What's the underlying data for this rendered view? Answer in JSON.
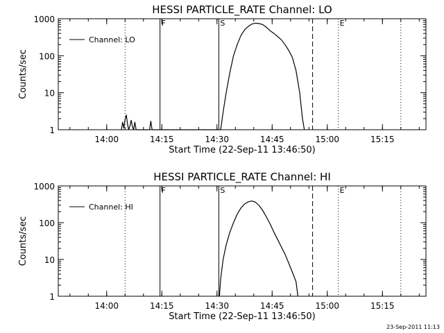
{
  "chart_data": [
    {
      "type": "line",
      "title": "HESSI PARTICLE_RATE Channel: LO",
      "xlabel": "Start Time (22-Sep-11 13:46:50)",
      "ylabel": "Counts/sec",
      "yscale": "log",
      "ylim": [
        1,
        1000
      ],
      "xlim": [
        "13:46:50",
        "15:26:50"
      ],
      "x_ticks": [
        "14:00",
        "14:15",
        "14:30",
        "14:45",
        "15:00",
        "15:15"
      ],
      "y_ticks": [
        "1",
        "10",
        "100",
        "1000"
      ],
      "legend": {
        "placement": "top-left",
        "entries": [
          "Channel: LO"
        ]
      },
      "markers": [
        {
          "time": "14:05",
          "style": "dotted",
          "label": ""
        },
        {
          "time": "14:14:30",
          "style": "solid",
          "label": "F"
        },
        {
          "time": "14:30:30",
          "style": "solid",
          "label": "S"
        },
        {
          "time": "14:56",
          "style": "dashed",
          "label": ""
        },
        {
          "time": "15:03",
          "style": "dotted",
          "label": "E"
        },
        {
          "time": "15:20",
          "style": "dotted",
          "label": ""
        }
      ],
      "series": [
        {
          "name": "Channel: LO",
          "points": [
            [
              "14:04:00",
              1
            ],
            [
              "14:04:20",
              1.6
            ],
            [
              "14:04:40",
              1.1
            ],
            [
              "14:05:00",
              1.9
            ],
            [
              "14:05:20",
              2.5
            ],
            [
              "14:05:40",
              1.4
            ],
            [
              "14:06:00",
              1
            ],
            [
              "14:06:20",
              1.3
            ],
            [
              "14:06:40",
              1.8
            ],
            [
              "14:07:00",
              1.2
            ],
            [
              "14:07:20",
              1
            ],
            [
              "14:07:40",
              1.6
            ],
            [
              "14:08:00",
              1
            ],
            [
              "14:11:40",
              1
            ],
            [
              "14:12:00",
              1.7
            ],
            [
              "14:12:20",
              1
            ],
            [
              "14:31:00",
              1
            ],
            [
              "14:31:40",
              3
            ],
            [
              "14:32:30",
              10
            ],
            [
              "14:33:30",
              35
            ],
            [
              "14:34:30",
              100
            ],
            [
              "14:35:30",
              200
            ],
            [
              "14:36:30",
              350
            ],
            [
              "14:37:30",
              500
            ],
            [
              "14:38:30",
              620
            ],
            [
              "14:39:30",
              720
            ],
            [
              "14:40:30",
              760
            ],
            [
              "14:41:30",
              740
            ],
            [
              "14:42:30",
              690
            ],
            [
              "14:43:30",
              580
            ],
            [
              "14:44:30",
              470
            ],
            [
              "14:45:30",
              400
            ],
            [
              "14:46:30",
              330
            ],
            [
              "14:47:30",
              270
            ],
            [
              "14:48:30",
              200
            ],
            [
              "14:49:30",
              140
            ],
            [
              "14:50:30",
              90
            ],
            [
              "14:51:30",
              40
            ],
            [
              "14:52:30",
              10
            ],
            [
              "14:53:15",
              2
            ],
            [
              "14:53:45",
              1
            ]
          ]
        }
      ]
    },
    {
      "type": "line",
      "title": "HESSI PARTICLE_RATE Channel: HI",
      "xlabel": "Start Time (22-Sep-11 13:46:50)",
      "ylabel": "Counts/sec",
      "yscale": "log",
      "ylim": [
        1,
        1000
      ],
      "xlim": [
        "13:46:50",
        "15:26:50"
      ],
      "x_ticks": [
        "14:00",
        "14:15",
        "14:30",
        "14:45",
        "15:00",
        "15:15"
      ],
      "y_ticks": [
        "1",
        "10",
        "100",
        "1000"
      ],
      "legend": {
        "placement": "top-left",
        "entries": [
          "Channel: HI"
        ]
      },
      "markers": [
        {
          "time": "14:05",
          "style": "dotted",
          "label": ""
        },
        {
          "time": "14:14:30",
          "style": "solid",
          "label": "F"
        },
        {
          "time": "14:30:30",
          "style": "solid",
          "label": "S"
        },
        {
          "time": "14:56",
          "style": "dashed",
          "label": ""
        },
        {
          "time": "15:03",
          "style": "dotted",
          "label": "E"
        },
        {
          "time": "15:20",
          "style": "dotted",
          "label": ""
        }
      ],
      "series": [
        {
          "name": "Channel: HI",
          "points": [
            [
              "14:30:40",
              1
            ],
            [
              "14:31:00",
              3
            ],
            [
              "14:31:40",
              10
            ],
            [
              "14:32:30",
              25
            ],
            [
              "14:33:30",
              55
            ],
            [
              "14:34:30",
              100
            ],
            [
              "14:35:30",
              170
            ],
            [
              "14:36:30",
              250
            ],
            [
              "14:37:30",
              320
            ],
            [
              "14:38:30",
              370
            ],
            [
              "14:39:30",
              390
            ],
            [
              "14:40:30",
              360
            ],
            [
              "14:41:30",
              290
            ],
            [
              "14:42:30",
              210
            ],
            [
              "14:43:30",
              140
            ],
            [
              "14:44:30",
              90
            ],
            [
              "14:45:30",
              55
            ],
            [
              "14:46:30",
              35
            ],
            [
              "14:47:30",
              22
            ],
            [
              "14:48:30",
              14
            ],
            [
              "14:49:30",
              8
            ],
            [
              "14:50:30",
              4.5
            ],
            [
              "14:51:30",
              2.5
            ],
            [
              "14:52:00",
              1
            ]
          ]
        }
      ]
    }
  ],
  "footer": {
    "date_stamp": "23-Sep-2011 11:13"
  }
}
